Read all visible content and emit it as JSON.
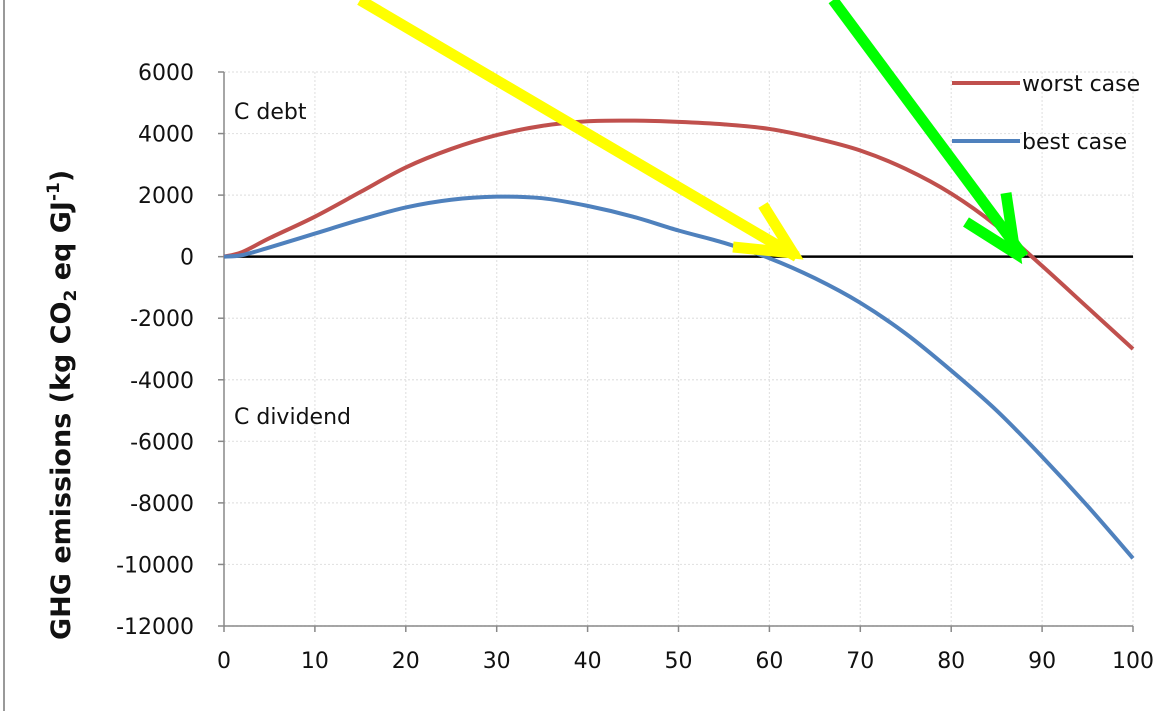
{
  "chart_data": {
    "type": "line",
    "ylabel": {
      "main": "GHG emissions (kg CO",
      "sub": "2",
      "mid": " eq GJ",
      "sup": "-1",
      "end": ")"
    },
    "xlim": [
      0,
      100
    ],
    "ylim": [
      -12000,
      6000
    ],
    "x_ticks": [
      "0",
      "10",
      "20",
      "30",
      "40",
      "50",
      "60",
      "70",
      "80",
      "90",
      "100"
    ],
    "y_ticks": [
      "6000",
      "4000",
      "2000",
      "0",
      "-2000",
      "-4000",
      "-6000",
      "-8000",
      "-10000",
      "-12000"
    ],
    "grid": true,
    "legend_placement": "top-right",
    "annotations": [
      {
        "text": "C debt",
        "x": 1,
        "y": 4600
      },
      {
        "text": "C dividend",
        "x": 1,
        "y": -5200
      }
    ],
    "x": [
      0,
      2,
      5,
      10,
      15,
      20,
      25,
      30,
      35,
      40,
      45,
      50,
      55,
      60,
      65,
      70,
      75,
      80,
      85,
      90,
      95,
      100
    ],
    "series": [
      {
        "name": "worst case",
        "color": "#c0504d",
        "values": [
          0,
          150,
          600,
          1300,
          2100,
          2900,
          3500,
          3950,
          4250,
          4400,
          4420,
          4380,
          4300,
          4150,
          3850,
          3450,
          2850,
          2050,
          1000,
          -300,
          -1650,
          -3000
        ]
      },
      {
        "name": "best case",
        "color": "#4f81bd",
        "values": [
          0,
          50,
          300,
          750,
          1200,
          1600,
          1850,
          1950,
          1900,
          1650,
          1300,
          850,
          450,
          -50,
          -700,
          -1500,
          -2500,
          -3700,
          -5000,
          -6500,
          -8100,
          -9800
        ]
      }
    ],
    "reference_line": {
      "y": 0,
      "color": "#000000"
    },
    "arrows": [
      {
        "color": "#ffff00",
        "points_to_x": 63,
        "points_to_y": 0
      },
      {
        "color": "#00ff00",
        "points_to_x": 88,
        "points_to_y": 0
      }
    ]
  }
}
